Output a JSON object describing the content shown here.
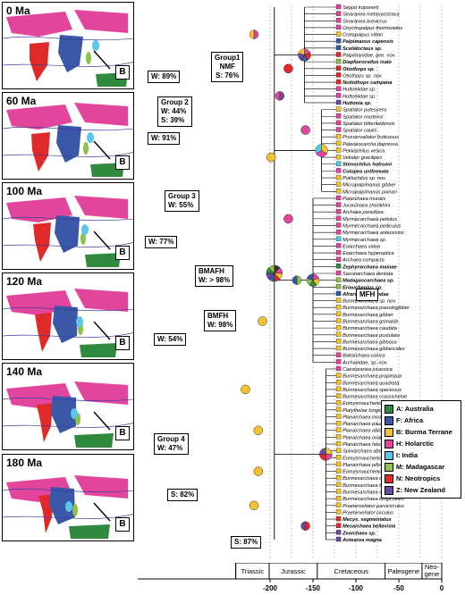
{
  "maps": [
    {
      "age": "0 Ma",
      "b": "B"
    },
    {
      "age": "60 Ma",
      "b": "B"
    },
    {
      "age": "100 Ma",
      "b": "B"
    },
    {
      "age": "120 Ma",
      "b": "B"
    },
    {
      "age": "140 Ma",
      "b": "B"
    },
    {
      "age": "180 Ma",
      "b": "B"
    }
  ],
  "tips": [
    {
      "name": "Seppo koponeni",
      "c": "#e2469c"
    },
    {
      "name": "Sinaranea metaxyostraca",
      "c": "#e2469c"
    },
    {
      "name": "Sinaranea brevicrus",
      "c": "#e2469c"
    },
    {
      "name": "Onychopalpus thomisoides",
      "c": "#e2469c"
    },
    {
      "name": "Cretapalpus vittari",
      "c": "#f3c232"
    },
    {
      "name": "Palpimanus capensis",
      "c": "#3a57a8",
      "bold": true
    },
    {
      "name": "Scelidocteus sp.",
      "c": "#3a57a8",
      "bold": true
    },
    {
      "name": "Palpimanidae, gen. nov.",
      "c": "#e02a2a"
    },
    {
      "name": "Diaphorocellus isalo",
      "c": "#8dc24a",
      "bold": true
    },
    {
      "name": "Otiothops sp.",
      "c": "#e02a2a",
      "bold": true
    },
    {
      "name": "Otiothops sp. nov.",
      "c": "#e02a2a"
    },
    {
      "name": "Notiothops campana",
      "c": "#e02a2a",
      "bold": true
    },
    {
      "name": "Huttoniidae sp.",
      "c": "#e2469c"
    },
    {
      "name": "Huttoniidae sp.",
      "c": "#e2469c"
    },
    {
      "name": "Huttonia sp.",
      "c": "#6d49a5",
      "bold": true
    },
    {
      "name": "Spatiator putescens",
      "c": "#f3c232"
    },
    {
      "name": "Spatiator martensi",
      "c": "#e2469c"
    },
    {
      "name": "Spatiator bitterfeldensis",
      "c": "#e2469c"
    },
    {
      "name": "Spatiator caulis",
      "c": "#e2469c"
    },
    {
      "name": "Prosvervaliator fruticosus",
      "c": "#f3c232"
    },
    {
      "name": "Paleoeocarcha dapressa",
      "c": "#f3c232"
    },
    {
      "name": "Pekkachilus vesica",
      "c": "#f3c232"
    },
    {
      "name": "Vetiator gracilipes",
      "c": "#f3c232"
    },
    {
      "name": "Stenochilus hobsoni",
      "c": "#5bc7e6",
      "bold": true
    },
    {
      "name": "Colopea unifoveata",
      "c": "#e2469c",
      "bold": true
    },
    {
      "name": "Pokluchilus sp. nov.",
      "c": "#f3c232"
    },
    {
      "name": "Micropalpimanus gibber",
      "c": "#f3c232"
    },
    {
      "name": "Micropalpimanus poinari",
      "c": "#f3c232"
    },
    {
      "name": "Patarchaea muralis",
      "c": "#e2469c"
    },
    {
      "name": "Jurarchaea zherikhini",
      "c": "#e2469c"
    },
    {
      "name": "Archaea paradoxa",
      "c": "#e2469c"
    },
    {
      "name": "Myrmecarchaea petiolus",
      "c": "#e2469c"
    },
    {
      "name": "Myrmecarchaea pediculus",
      "c": "#e2469c"
    },
    {
      "name": "Myrmecarchaea antecessor",
      "c": "#e2469c"
    },
    {
      "name": "Myrmecarchaea sp.",
      "c": "#5bc7e6"
    },
    {
      "name": "Eoarchaea vidua",
      "c": "#e2469c"
    },
    {
      "name": "Eoarchaea hyperoptica",
      "c": "#e2469c"
    },
    {
      "name": "Archaea compacta",
      "c": "#e2469c"
    },
    {
      "name": "Zephyrarchaea mainae",
      "c": "#2f8a3e",
      "bold": true
    },
    {
      "name": "Saxonarchaea dentata",
      "c": "#e2469c"
    },
    {
      "name": "Madagascarchaea sp.",
      "c": "#8dc24a",
      "bold": true
    },
    {
      "name": "Eriauchenius sp.",
      "c": "#8dc24a",
      "bold": true
    },
    {
      "name": "Afrarchaea woodae",
      "c": "#3a57a8",
      "bold": true
    },
    {
      "name": "Burmesarchaea sp. nov.",
      "c": "#f3c232"
    },
    {
      "name": "Burmesarchaea pseudogibber",
      "c": "#f3c232"
    },
    {
      "name": "Burmesarchaea gibber",
      "c": "#f3c232"
    },
    {
      "name": "Burmesarchaea grimaldii",
      "c": "#f3c232"
    },
    {
      "name": "Burmesarchaea caudata",
      "c": "#f3c232"
    },
    {
      "name": "Burmesarchaea pustulata",
      "c": "#f3c232"
    },
    {
      "name": "Burmesarchaea gibbosa",
      "c": "#f3c232"
    },
    {
      "name": "Burmesarchaea gibbercides",
      "c": "#f3c232"
    },
    {
      "name": "Baltarchaea conica",
      "c": "#e2469c"
    },
    {
      "name": "Archaeidae, sp. nov.",
      "c": "#e2469c"
    },
    {
      "name": "Caestaranea jurassica",
      "c": "#e2469c"
    },
    {
      "name": "Burmesarchaea propinqua",
      "c": "#f3c232"
    },
    {
      "name": "Burmesarchaea quadrata",
      "c": "#f3c232"
    },
    {
      "name": "Burmesarchaea speciosus",
      "c": "#f3c232"
    },
    {
      "name": "Burmesarchaea crassichelae",
      "c": "#f3c232"
    },
    {
      "name": "Eomysmauchenius septentrionalis",
      "c": "#f3c232"
    },
    {
      "name": "Platythelae longicorpus",
      "c": "#f3c232"
    },
    {
      "name": "Planarchaea incompleta",
      "c": "#f3c232"
    },
    {
      "name": "Planarchaea pauidentatus",
      "c": "#f3c232"
    },
    {
      "name": "Planarchaea oblonga",
      "c": "#f3c232"
    },
    {
      "name": "Planarchaea ovata",
      "c": "#f3c232"
    },
    {
      "name": "Planarchaea heosaurus",
      "c": "#f3c232"
    },
    {
      "name": "Spiniarchaea aberraus",
      "c": "#f3c232"
    },
    {
      "name": "Eomysmauchenius longissipes",
      "c": "#f3c232"
    },
    {
      "name": "Planarchaea pilosa",
      "c": "#f3c232"
    },
    {
      "name": "Eomysmauchenius dubius",
      "c": "#f3c232"
    },
    {
      "name": "Burmesarchaea crassipalpus",
      "c": "#f3c232"
    },
    {
      "name": "Burmesarchaea bilongapophyses",
      "c": "#f3c232"
    },
    {
      "name": "Burmesarchaea anisa",
      "c": "#f3c232"
    },
    {
      "name": "Burmesarchaea longicollum",
      "c": "#f3c232"
    },
    {
      "name": "Praeterveliator parvicirculus",
      "c": "#f3c232"
    },
    {
      "name": "Praeterveliator circulus",
      "c": "#f3c232"
    },
    {
      "name": "Mecys. segmentatus",
      "c": "#e02a2a",
      "bold": true
    },
    {
      "name": "Mesarchaea bellavista",
      "c": "#e02a2a",
      "bold": true
    },
    {
      "name": "Zearchaea sp.",
      "c": "#6d49a5",
      "bold": true
    },
    {
      "name": "Aotearoa magna",
      "c": "#6d49a5",
      "bold": true
    }
  ],
  "annotations": {
    "w1": "W: 89%",
    "g1a": "Group1",
    "g1b": "NMF",
    "g1c": "S: 76%",
    "w2": "W: 91%",
    "g2a": "Group 2",
    "g2b": "W: 44%",
    "g2c": "S: 39%",
    "g3a": "Group 3",
    "g3b": "W: 55%",
    "w77": "W: 77%",
    "bmafh_a": "BMAFH",
    "bmafh_b": "W: > 98%",
    "mfh": "MFH",
    "bmfh_a": "BMFH",
    "bmfh_b": "W: 98%",
    "w54": "W: 54%",
    "g4a": "Group 4",
    "g4b": "W: 47%",
    "s82": "S: 82%",
    "s87": "S: 87%",
    "star": "*"
  },
  "legend": [
    {
      "label": "A: Australia",
      "color": "#2f8a3e"
    },
    {
      "label": "F: Africa",
      "color": "#3a57a8"
    },
    {
      "label": "B: Burma Terrane",
      "color": "#f3c232"
    },
    {
      "label": "H: Holarctic",
      "color": "#e2469c"
    },
    {
      "label": "I: India",
      "color": "#5bc7e6"
    },
    {
      "label": "M: Madagascar",
      "color": "#8dc24a"
    },
    {
      "label": "N: Neotropics",
      "color": "#e02a2a"
    },
    {
      "label": "Z: New Zealand",
      "color": "#6d49a5"
    }
  ],
  "periods": [
    {
      "name": "Triassic",
      "start": -240,
      "end": -201
    },
    {
      "name": "Jurassic",
      "start": -201,
      "end": -145
    },
    {
      "name": "Cretaceous",
      "start": -145,
      "end": -66
    },
    {
      "name": "Paleogene",
      "start": -66,
      "end": -23
    },
    {
      "name": "Neo-\ngene",
      "start": -23,
      "end": 0
    }
  ],
  "ticks": [
    "-200",
    "-150",
    "-100",
    "-50",
    "0"
  ],
  "tick_values": [
    -200,
    -150,
    -100,
    -50,
    0
  ]
}
